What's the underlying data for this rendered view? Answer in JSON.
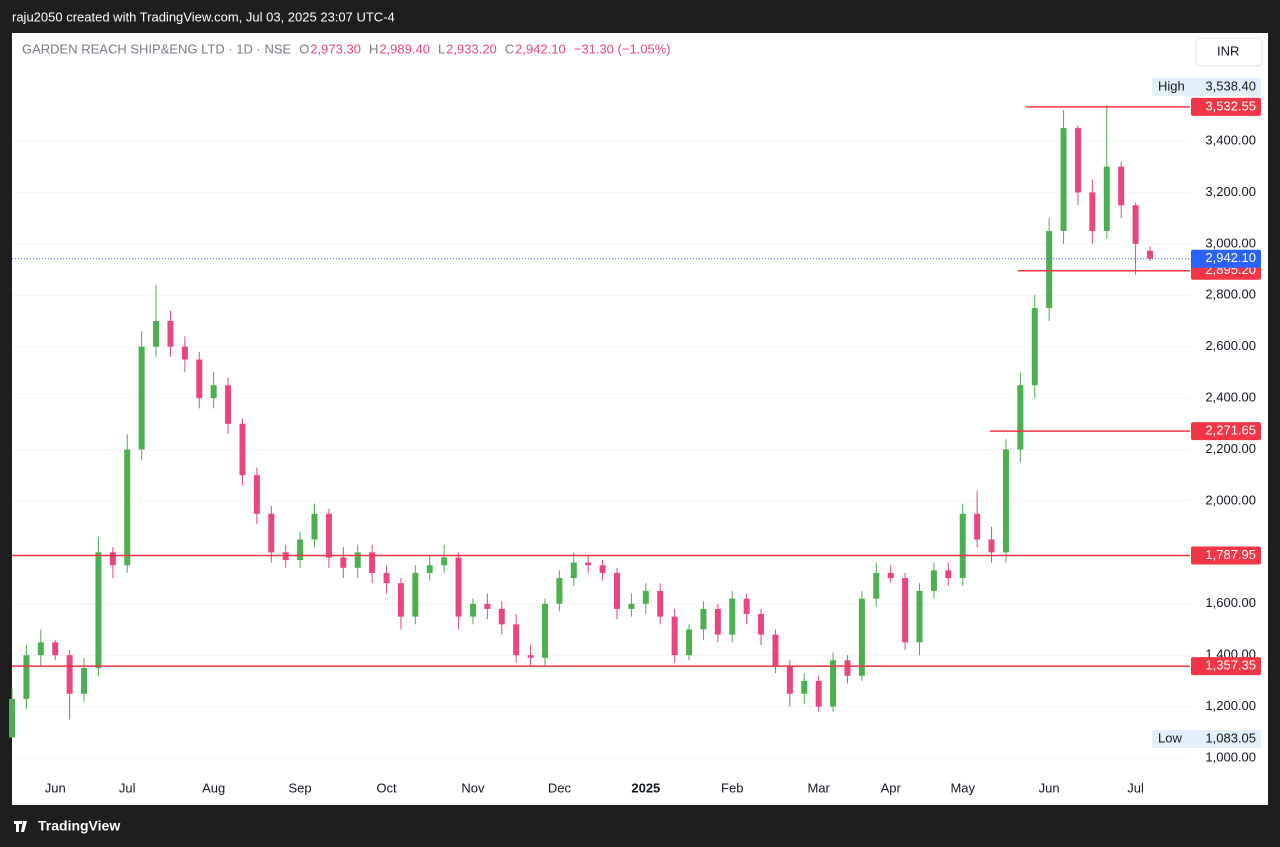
{
  "header": {
    "text": "raju2050 created with TradingView.com, Jul 03, 2025 23:07 UTC-4"
  },
  "chart_data": {
    "type": "candlestick",
    "title": "GARDEN REACH SHIP&ENG LTD · 1D · NSE",
    "quote": [
      {
        "key": "O",
        "value": "2,973.30"
      },
      {
        "key": "H",
        "value": "2,989.40"
      },
      {
        "key": "L",
        "value": "2,933.20"
      },
      {
        "key": "C",
        "value": "2,942.10"
      }
    ],
    "change": "−31.30 (−1.05%)",
    "currency": "INR",
    "categories": [
      null,
      null,
      null,
      "Jun",
      null,
      null,
      null,
      null,
      "Jul",
      null,
      null,
      null,
      null,
      null,
      "Aug",
      null,
      null,
      null,
      null,
      null,
      "Sep",
      null,
      null,
      null,
      null,
      null,
      "Oct",
      null,
      null,
      null,
      null,
      null,
      "Nov",
      null,
      null,
      null,
      null,
      null,
      "Dec",
      null,
      null,
      null,
      null,
      null,
      "2025",
      null,
      null,
      null,
      null,
      null,
      "Feb",
      null,
      null,
      null,
      null,
      null,
      "Mar",
      null,
      null,
      null,
      null,
      "Apr",
      null,
      null,
      null,
      null,
      "May",
      null,
      null,
      null,
      null,
      null,
      "Jun",
      null,
      null,
      null,
      null,
      null,
      "Jul",
      null
    ],
    "open": [
      1080,
      1230,
      1400,
      1450,
      1400,
      1250,
      1350,
      1800,
      1750,
      2200,
      2600,
      2700,
      2600,
      2550,
      2400,
      2450,
      2300,
      2100,
      1950,
      1800,
      1770,
      1850,
      1950,
      1780,
      1740,
      1800,
      1720,
      1680,
      1550,
      1720,
      1750,
      1780,
      1550,
      1600,
      1580,
      1520,
      1400,
      1390,
      1600,
      1700,
      1760,
      1750,
      1720,
      1580,
      1600,
      1650,
      1550,
      1400,
      1500,
      1580,
      1480,
      1620,
      1560,
      1480,
      1360,
      1250,
      1300,
      1200,
      1380,
      1320,
      1620,
      1720,
      1700,
      1450,
      1650,
      1730,
      1700,
      1950,
      1850,
      1800,
      2200,
      2450,
      2750,
      3050,
      3450,
      3200,
      3050,
      3300,
      3150,
      2973.3
    ],
    "high": [
      1270,
      1440,
      1500,
      1460,
      1420,
      1390,
      1860,
      1820,
      2260,
      2660,
      2840,
      2740,
      2640,
      2580,
      2500,
      2480,
      2320,
      2130,
      1980,
      1830,
      1880,
      1990,
      1970,
      1820,
      1830,
      1830,
      1750,
      1700,
      1750,
      1790,
      1830,
      1800,
      1620,
      1640,
      1610,
      1560,
      1440,
      1620,
      1730,
      1800,
      1790,
      1770,
      1740,
      1640,
      1680,
      1680,
      1580,
      1520,
      1610,
      1600,
      1650,
      1640,
      1580,
      1500,
      1380,
      1330,
      1320,
      1410,
      1400,
      1650,
      1760,
      1750,
      1720,
      1680,
      1760,
      1760,
      1990,
      2040,
      1900,
      2240,
      2500,
      2800,
      3100,
      3520,
      3460,
      3250,
      3538.4,
      3320,
      3160,
      2989.4
    ],
    "low": [
      1083.05,
      1190,
      1360,
      1380,
      1150,
      1220,
      1320,
      1700,
      1720,
      2160,
      2560,
      2560,
      2500,
      2360,
      2360,
      2260,
      2060,
      1910,
      1760,
      1740,
      1740,
      1820,
      1740,
      1700,
      1700,
      1680,
      1640,
      1500,
      1520,
      1690,
      1720,
      1500,
      1520,
      1540,
      1480,
      1370,
      1360,
      1360,
      1570,
      1670,
      1720,
      1690,
      1540,
      1550,
      1560,
      1520,
      1370,
      1380,
      1460,
      1450,
      1450,
      1520,
      1440,
      1330,
      1200,
      1210,
      1180,
      1180,
      1290,
      1300,
      1590,
      1680,
      1420,
      1400,
      1620,
      1670,
      1670,
      1820,
      1760,
      1760,
      2150,
      2400,
      2700,
      3000,
      3150,
      3000,
      3020,
      3100,
      2880,
      2933.2
    ],
    "close": [
      1230,
      1400,
      1450,
      1400,
      1250,
      1350,
      1800,
      1750,
      2200,
      2600,
      2700,
      2600,
      2550,
      2400,
      2450,
      2300,
      2100,
      1950,
      1800,
      1770,
      1850,
      1950,
      1780,
      1740,
      1800,
      1720,
      1680,
      1550,
      1720,
      1750,
      1780,
      1550,
      1600,
      1580,
      1520,
      1400,
      1390,
      1600,
      1700,
      1760,
      1750,
      1720,
      1580,
      1600,
      1650,
      1550,
      1400,
      1500,
      1580,
      1480,
      1620,
      1560,
      1480,
      1360,
      1250,
      1300,
      1200,
      1380,
      1320,
      1620,
      1720,
      1700,
      1450,
      1650,
      1730,
      1700,
      1950,
      1850,
      1800,
      2200,
      2450,
      2750,
      3050,
      3450,
      3200,
      3050,
      3300,
      3150,
      3000,
      2942.1
    ],
    "up_color": "#4caf50",
    "down_color": "#e8467c",
    "level_color": "#f23645",
    "last_color": "#2962ff",
    "ylim": [
      934,
      3820
    ],
    "yticks": [
      {
        "value": 1000,
        "label": "1,000.00"
      },
      {
        "value": 1200,
        "label": "1,200.00"
      },
      {
        "value": 1400,
        "label": "1,400.00"
      },
      {
        "value": 1600,
        "label": "1,600.00"
      },
      {
        "value": 1800,
        "label": "1,800.00"
      },
      {
        "value": 2000,
        "label": "2,000.00"
      },
      {
        "value": 2200,
        "label": "2,200.00"
      },
      {
        "value": 2400,
        "label": "2,400.00"
      },
      {
        "value": 2600,
        "label": "2,600.00"
      },
      {
        "value": 2800,
        "label": "2,800.00"
      },
      {
        "value": 3000,
        "label": "3,000.00"
      },
      {
        "value": 3200,
        "label": "3,200.00"
      },
      {
        "value": 3400,
        "label": "3,400.00"
      }
    ],
    "levels": [
      {
        "value": 3532.55,
        "label": "3,532.55"
      },
      {
        "value": 2895.2,
        "label": "2,895.20"
      },
      {
        "value": 2271.65,
        "label": "2,271.65"
      },
      {
        "value": 1787.95,
        "label": "1,787.95"
      },
      {
        "value": 1357.35,
        "label": "1,357.35"
      }
    ],
    "last": {
      "value": 2942.1,
      "label": "2,942.10"
    },
    "high_marker": {
      "key": "High",
      "value": 3538.4,
      "label": "3,538.40"
    },
    "low_marker": {
      "key": "Low",
      "value": 1083.05,
      "label": "1,083.05"
    }
  },
  "footer": {
    "brand": "TradingView"
  }
}
